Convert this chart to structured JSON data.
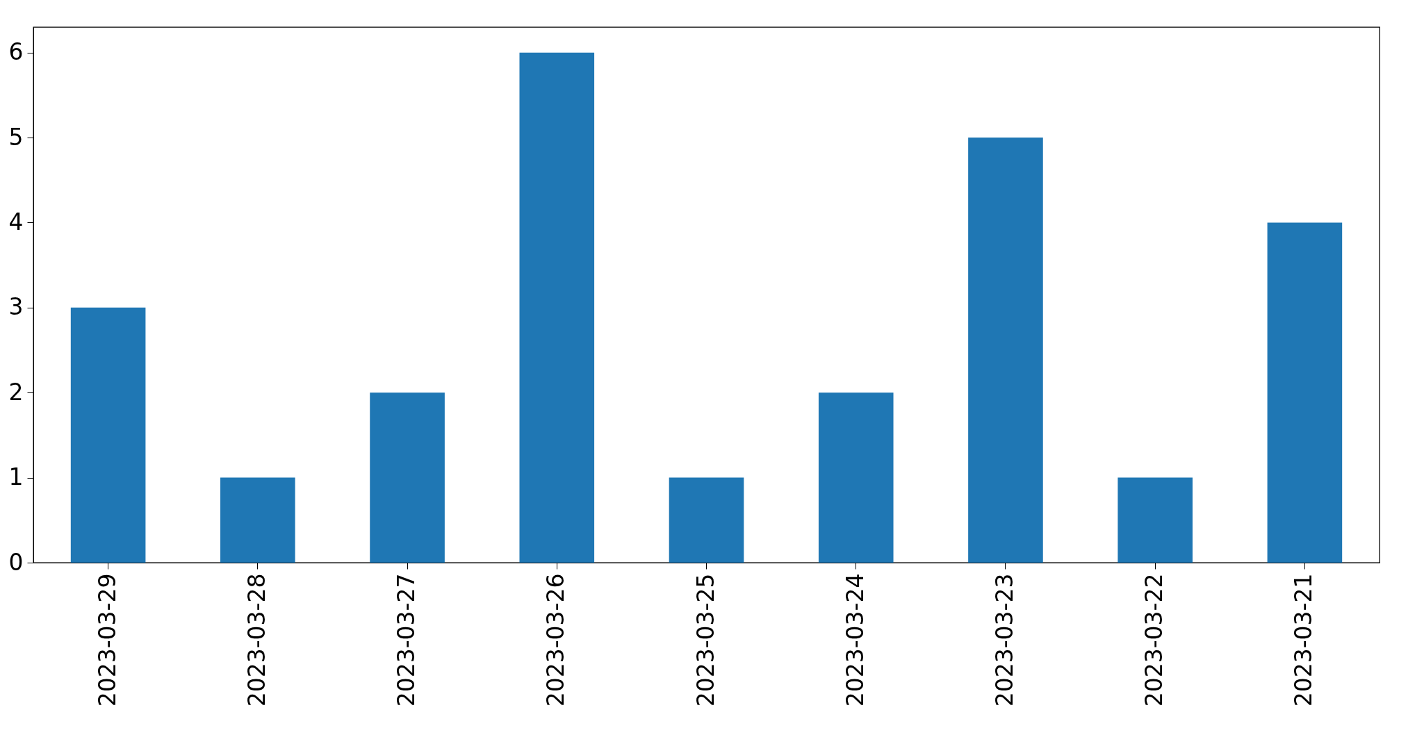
{
  "chart_data": {
    "type": "bar",
    "categories": [
      "2023-03-29",
      "2023-03-28",
      "2023-03-27",
      "2023-03-26",
      "2023-03-25",
      "2023-03-24",
      "2023-03-23",
      "2023-03-22",
      "2023-03-21"
    ],
    "values": [
      3,
      1,
      2,
      6,
      1,
      2,
      5,
      1,
      4
    ],
    "color": "#1f77b4",
    "ylim": [
      0,
      6.3
    ],
    "yticks": [
      0,
      1,
      2,
      3,
      4,
      5,
      6
    ],
    "grid": false
  }
}
